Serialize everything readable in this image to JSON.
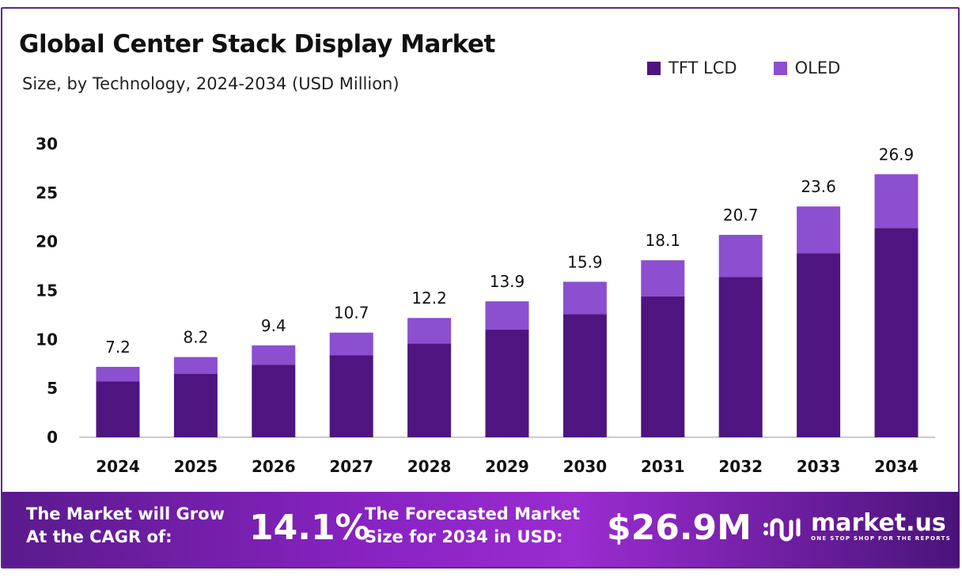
{
  "chart_data": {
    "type": "bar",
    "stacked": true,
    "title": "Global Center Stack Display Market",
    "subtitle": "Size, by Technology, 2024-2034 (USD Million)",
    "categories": [
      "2024",
      "2025",
      "2026",
      "2027",
      "2028",
      "2029",
      "2030",
      "2031",
      "2032",
      "2033",
      "2034"
    ],
    "series": [
      {
        "name": "TFT LCD",
        "color": "#4e1580",
        "values": [
          5.7,
          6.5,
          7.4,
          8.4,
          9.6,
          11.0,
          12.6,
          14.4,
          16.4,
          18.8,
          21.4
        ]
      },
      {
        "name": "OLED",
        "color": "#8b4fcf",
        "values": [
          1.5,
          1.7,
          2.0,
          2.3,
          2.6,
          2.9,
          3.3,
          3.7,
          4.3,
          4.8,
          5.5
        ]
      }
    ],
    "totals": [
      "7.2",
      "8.2",
      "9.4",
      "10.7",
      "12.2",
      "13.9",
      "15.9",
      "18.1",
      "20.7",
      "23.6",
      "26.9"
    ],
    "ylim": [
      0,
      30
    ],
    "yticks": [
      "0",
      "5",
      "10",
      "15",
      "20",
      "25",
      "30"
    ],
    "grid": false,
    "legend_position": "top-right",
    "xlabel": "",
    "ylabel": ""
  },
  "footer": {
    "cagr_label_line1": "The Market will Grow",
    "cagr_label_line2": "At the CAGR of:",
    "cagr_value": "14.1%",
    "forecast_label_line1": "The Forecasted Market",
    "forecast_label_line2": "Size for 2034 in USD:",
    "forecast_value": "$26.9M",
    "logo_name": "market.us",
    "logo_tagline": "ONE STOP SHOP FOR THE REPORTS"
  }
}
